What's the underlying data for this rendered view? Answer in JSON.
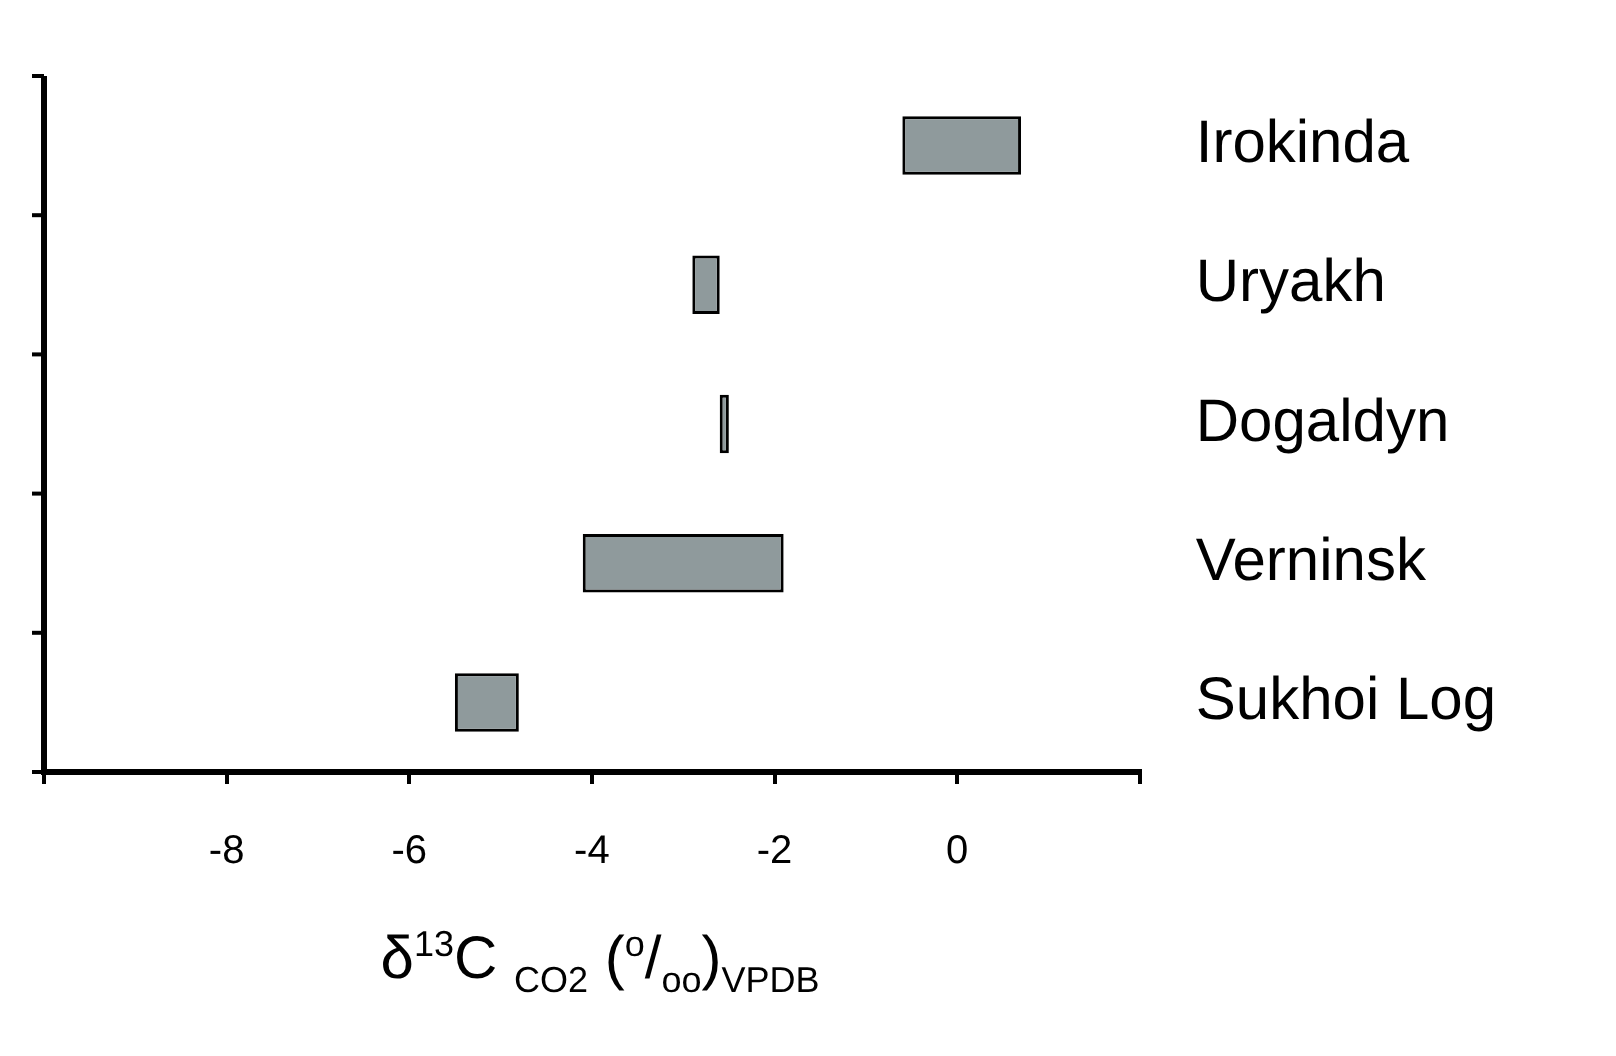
{
  "chart_data": {
    "type": "bar",
    "orientation": "horizontal",
    "categories": [
      "Irokinda",
      "Uryakh",
      "Dogaldyn",
      "Verninsk",
      "Sukhoi Log"
    ],
    "base": [
      -0.6,
      -2.9,
      -2.6,
      -4.1,
      -5.5
    ],
    "values": [
      1.3,
      0.3,
      0.1,
      2.2,
      0.7
    ],
    "color": "#8f9a9c",
    "xlabel": "δ$^{13}$C $_{CO2}$ ($^{o}$/$_{oo}$)$_{VPDB}$",
    "xlim": [
      -10,
      2
    ],
    "xticks": [
      {
        "value": -10,
        "label": null
      },
      -8,
      -6,
      -4,
      -2,
      0,
      {
        "value": 2,
        "label": null
      }
    ],
    "grid": false,
    "legend": false
  }
}
